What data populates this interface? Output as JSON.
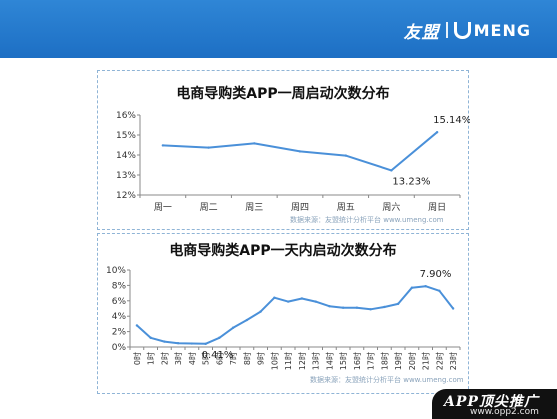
{
  "brand": {
    "name_cn": "友盟",
    "name_en": "MENG"
  },
  "source_text": "数据来源：友盟统计分析平台 www.umeng.com",
  "watermark": {
    "text": "APP顶尖推广",
    "url": "www.opp2.com"
  },
  "colors": {
    "header": "#1d6fc4",
    "line": "#4a90d9",
    "panel_border": "#8fb4d6"
  },
  "chart_data": [
    {
      "type": "line",
      "title": "电商导购类APP一周启动次数分布",
      "categories": [
        "周一",
        "周二",
        "周三",
        "周四",
        "周五",
        "周六",
        "周日"
      ],
      "values": [
        14.48,
        14.37,
        14.58,
        14.18,
        13.97,
        13.23,
        15.14
      ],
      "yticks": [
        "12%",
        "13%",
        "14%",
        "15%",
        "16%"
      ],
      "ylim": [
        12,
        16
      ],
      "annotations": [
        {
          "index": 5,
          "label": "13.23%"
        },
        {
          "index": 6,
          "label": "15.14%"
        }
      ],
      "grid": false
    },
    {
      "type": "line",
      "title": "电商导购类APP一天内启动次数分布",
      "categories": [
        "0时",
        "1时",
        "2时",
        "3时",
        "4时",
        "5时",
        "6时",
        "7时",
        "8时",
        "9时",
        "10时",
        "11时",
        "12时",
        "13时",
        "14时",
        "15时",
        "16时",
        "17时",
        "18时",
        "19时",
        "20时",
        "21时",
        "22时",
        "23时"
      ],
      "values": [
        2.8,
        1.2,
        0.7,
        0.5,
        0.45,
        0.41,
        1.2,
        2.5,
        3.5,
        4.6,
        6.4,
        5.9,
        6.3,
        5.9,
        5.3,
        5.1,
        5.1,
        4.9,
        5.2,
        5.6,
        7.7,
        7.9,
        7.3,
        5.0
      ],
      "yticks": [
        "0%",
        "2%",
        "4%",
        "6%",
        "8%",
        "10%"
      ],
      "ylim": [
        0,
        10
      ],
      "annotations": [
        {
          "index": 5,
          "label": "0.41%"
        },
        {
          "index": 21,
          "label": "7.90%"
        }
      ],
      "grid": false
    }
  ]
}
